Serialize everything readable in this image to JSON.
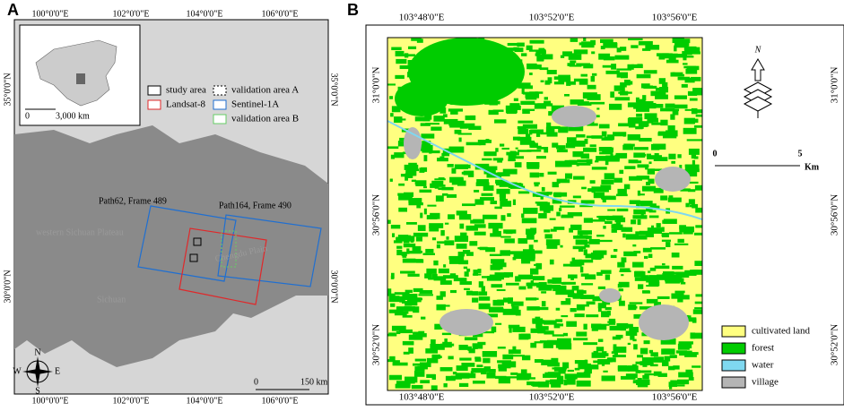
{
  "panel_a": {
    "label": "A",
    "lon_labels": [
      "100°0'0\"E",
      "102°0'0\"E",
      "104°0'0\"E",
      "106°0'0\"E"
    ],
    "lat_labels": [
      "35°0'0\"N",
      "30°0'0\"N"
    ],
    "inset_scale": [
      "0",
      "3,000 km"
    ],
    "legend": [
      "study area",
      "validation area A",
      "Landsat-8",
      "Sentinel-1A",
      "validation area B"
    ],
    "paths": [
      "Path62, Frame 489",
      "Path164, Frame 490"
    ],
    "places": [
      "western Sichuan Plateau",
      "Chengdu Plain",
      "Sichuan"
    ],
    "compass": [
      "N",
      "S",
      "W",
      "E"
    ],
    "scale": [
      "0",
      "150 km"
    ]
  },
  "panel_b": {
    "label": "B",
    "lon_labels": [
      "103°48'0\"E",
      "103°52'0\"E",
      "103°56'0\"E"
    ],
    "lat_labels": [
      "31°0'0\"N",
      "30°56'0\"N",
      "30°52'0\"N"
    ],
    "north": "N",
    "scale": [
      "0",
      "5",
      "Km"
    ],
    "legend": [
      "cultivated land",
      "forest",
      "water",
      "village"
    ]
  }
}
